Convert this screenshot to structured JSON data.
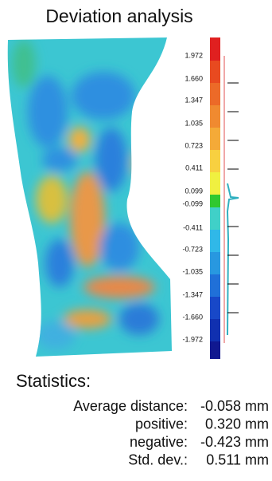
{
  "title": "Deviation analysis",
  "scale": {
    "labels": [
      "1.972",
      "1.660",
      "1.347",
      "1.035",
      "0.723",
      "0.411",
      "0.099",
      "-0.099",
      "-0.411",
      "-0.723",
      "-1.035",
      "-1.347",
      "-1.660",
      "-1.972"
    ]
  },
  "statistics": {
    "title": "Statistics:",
    "rows": [
      {
        "label": "Average distance:",
        "value": "-0.058 mm"
      },
      {
        "label": "positive:",
        "value": "0.320 mm"
      },
      {
        "label": "negative:",
        "value": "-0.423 mm"
      },
      {
        "label": "Std. dev.:",
        "value": "0.511 mm"
      }
    ]
  }
}
